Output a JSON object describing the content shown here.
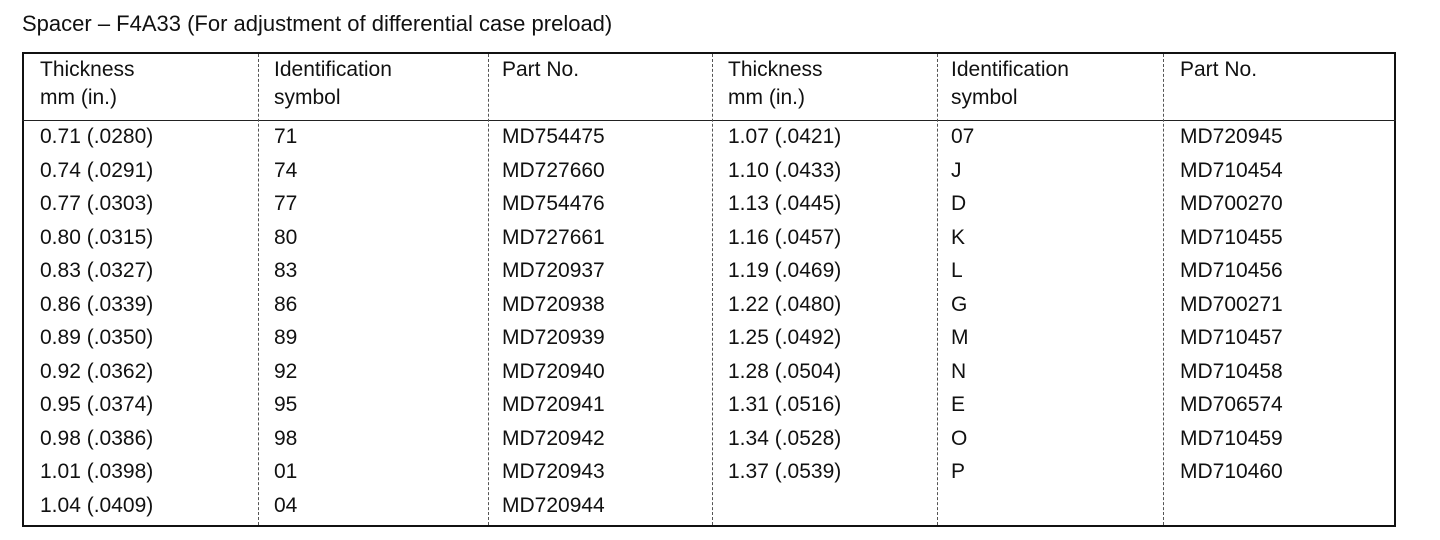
{
  "title": "Spacer – F4A33 (For adjustment of differential case preload)",
  "table": {
    "headers": [
      [
        "Thickness",
        "mm (in.)"
      ],
      [
        "Identification",
        "symbol"
      ],
      [
        "Part No."
      ],
      [
        "Thickness",
        "mm (in.)"
      ],
      [
        "Identification",
        "symbol"
      ],
      [
        "Part No."
      ]
    ],
    "rows": [
      [
        "0.71 (.0280)",
        "71",
        "MD754475",
        "1.07 (.0421)",
        "07",
        "MD720945"
      ],
      [
        "0.74 (.0291)",
        "74",
        "MD727660",
        "1.10 (.0433)",
        "J",
        "MD710454"
      ],
      [
        "0.77 (.0303)",
        "77",
        "MD754476",
        "1.13 (.0445)",
        "D",
        "MD700270"
      ],
      [
        "0.80 (.0315)",
        "80",
        "MD727661",
        "1.16 (.0457)",
        "K",
        "MD710455"
      ],
      [
        "0.83 (.0327)",
        "83",
        "MD720937",
        "1.19 (.0469)",
        "L",
        "MD710456"
      ],
      [
        "0.86 (.0339)",
        "86",
        "MD720938",
        "1.22 (.0480)",
        "G",
        "MD700271"
      ],
      [
        "0.89 (.0350)",
        "89",
        "MD720939",
        "1.25 (.0492)",
        "M",
        "MD710457"
      ],
      [
        "0.92 (.0362)",
        "92",
        "MD720940",
        "1.28 (.0504)",
        "N",
        "MD710458"
      ],
      [
        "0.95 (.0374)",
        "95",
        "MD720941",
        "1.31 (.0516)",
        "E",
        "MD706574"
      ],
      [
        "0.98 (.0386)",
        "98",
        "MD720942",
        "1.34 (.0528)",
        "O",
        "MD710459"
      ],
      [
        "1.01 (.0398)",
        "01",
        "MD720943",
        "1.37 (.0539)",
        "P",
        "MD710460"
      ],
      [
        "1.04 (.0409)",
        "04",
        "MD720944"
      ]
    ]
  }
}
